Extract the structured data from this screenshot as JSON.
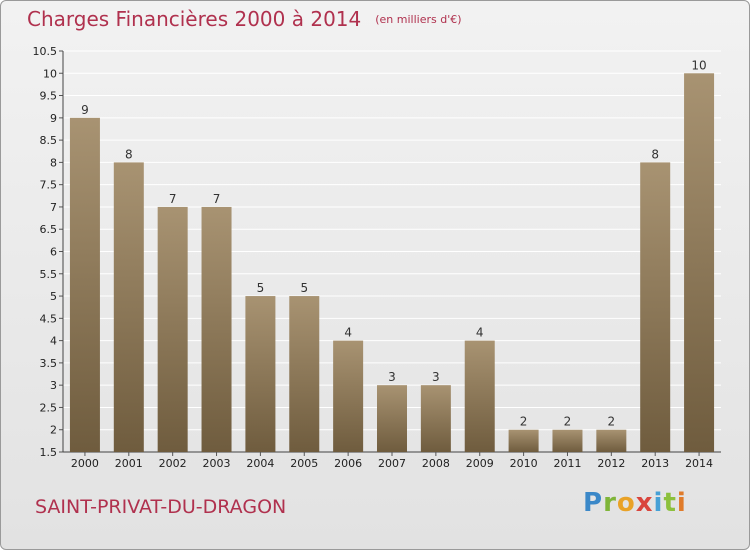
{
  "header": {
    "title": "Charges Financières 2000 à 2014",
    "unit": "(en milliers d'€)"
  },
  "footer": {
    "commune": "SAINT-PRIVAT-DU-DRAGON",
    "logo": "Proxiti"
  },
  "colors": {
    "title": "#b0314e",
    "bar_light": "#a89372",
    "bar_dark": "#6f5c3e",
    "grid": "#ffffff"
  },
  "chart_data": {
    "type": "bar",
    "title": "Charges Financières 2000 à 2014",
    "subtitle": "(en milliers d'€)",
    "categories": [
      "2000",
      "2001",
      "2002",
      "2003",
      "2004",
      "2005",
      "2006",
      "2007",
      "2008",
      "2009",
      "2010",
      "2011",
      "2012",
      "2013",
      "2014"
    ],
    "values": [
      9,
      8,
      7,
      7,
      5,
      5,
      4,
      3,
      3,
      4,
      2,
      2,
      2,
      8,
      10
    ],
    "value_labels": [
      "9",
      "8",
      "7",
      "7",
      "5",
      "5",
      "4",
      "3",
      "3",
      "4",
      "2",
      "2",
      "2",
      "8",
      "10"
    ],
    "ylim": [
      1.5,
      10.5
    ],
    "yticks": [
      "1.5",
      "2",
      "2.5",
      "3",
      "3.5",
      "4",
      "4.5",
      "5",
      "5.5",
      "6",
      "6.5",
      "7",
      "7.5",
      "8",
      "8.5",
      "9",
      "9.5",
      "10",
      "10.5"
    ],
    "grid": true,
    "xlabel": "",
    "ylabel": ""
  }
}
